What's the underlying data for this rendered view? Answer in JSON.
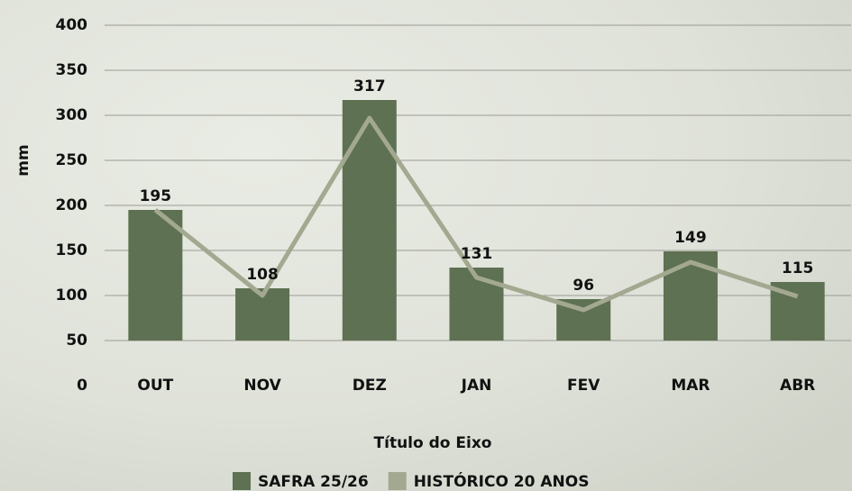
{
  "chart_data": {
    "type": "bar+line",
    "categories": [
      "OUT",
      "NOV",
      "DEZ",
      "JAN",
      "FEV",
      "MAR",
      "ABR"
    ],
    "series": [
      {
        "name": "SAFRA 25/26",
        "color": "#5e7152",
        "type": "bar",
        "values": [
          195,
          108,
          317,
          131,
          96,
          149,
          115
        ]
      },
      {
        "name": "HISTÓRICO 20 ANOS",
        "color": "#a3a890",
        "type": "line",
        "values": [
          195,
          100,
          297,
          120,
          84,
          137,
          99
        ]
      }
    ],
    "ylim": [
      0,
      400
    ],
    "yticks": [
      0,
      50,
      100,
      150,
      200,
      250,
      300,
      350,
      400
    ],
    "ylabel": "mm",
    "xlabel": "Título do Eixo",
    "grid": true,
    "legend": "bottom"
  }
}
